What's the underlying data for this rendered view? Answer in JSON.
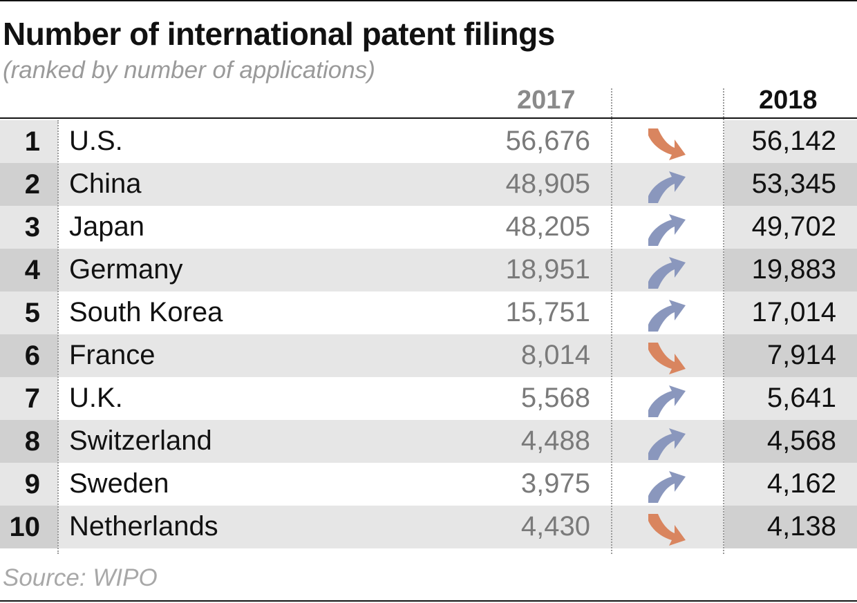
{
  "title": "Number of international patent filings",
  "subtitle": "(ranked by number of applications)",
  "source": "Source: WIPO",
  "columns": {
    "year_a": "2017",
    "year_b": "2018"
  },
  "colors": {
    "up": "#8a97bd",
    "down": "#d9855f"
  },
  "chart_data": {
    "type": "table",
    "title": "Number of international patent filings",
    "subtitle": "(ranked by number of applications)",
    "columns": [
      "",
      "",
      "2017",
      "",
      "2018"
    ],
    "rows": [
      {
        "rank": "1",
        "country": "U.S.",
        "y2017": "56,676",
        "y2018": "56,142",
        "trend": "down"
      },
      {
        "rank": "2",
        "country": "China",
        "y2017": "48,905",
        "y2018": "53,345",
        "trend": "up"
      },
      {
        "rank": "3",
        "country": "Japan",
        "y2017": "48,205",
        "y2018": "49,702",
        "trend": "up"
      },
      {
        "rank": "4",
        "country": "Germany",
        "y2017": "18,951",
        "y2018": "19,883",
        "trend": "up"
      },
      {
        "rank": "5",
        "country": "South Korea",
        "y2017": "15,751",
        "y2018": "17,014",
        "trend": "up"
      },
      {
        "rank": "6",
        "country": "France",
        "y2017": "8,014",
        "y2018": "7,914",
        "trend": "down"
      },
      {
        "rank": "7",
        "country": "U.K.",
        "y2017": "5,568",
        "y2018": "5,641",
        "trend": "up"
      },
      {
        "rank": "8",
        "country": "Switzerland",
        "y2017": "4,488",
        "y2018": "4,568",
        "trend": "up"
      },
      {
        "rank": "9",
        "country": "Sweden",
        "y2017": "3,975",
        "y2018": "4,162",
        "trend": "up"
      },
      {
        "rank": "10",
        "country": "Netherlands",
        "y2017": "4,430",
        "y2018": "4,138",
        "trend": "down"
      }
    ],
    "source": "Source: WIPO"
  }
}
